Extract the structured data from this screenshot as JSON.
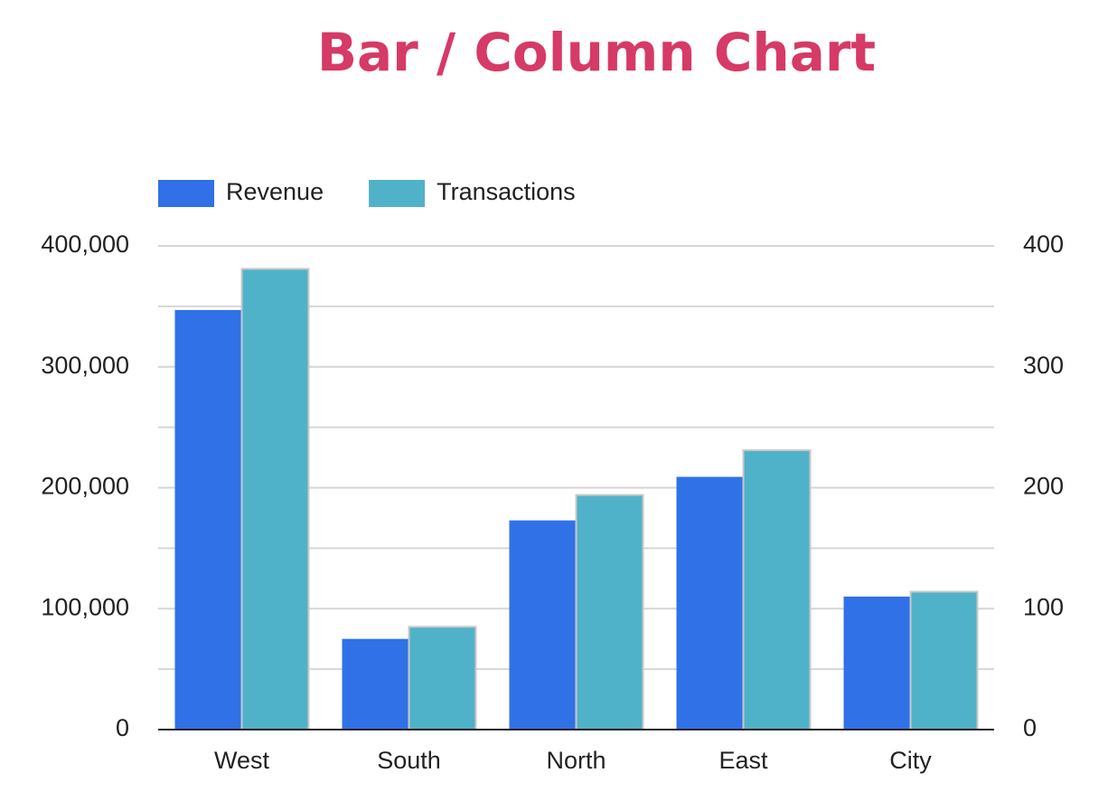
{
  "chart_data": {
    "type": "bar",
    "title": "Bar / Column Chart",
    "categories": [
      "West",
      "South",
      "North",
      "East",
      "City"
    ],
    "series": [
      {
        "name": "Revenue",
        "color": "#3071e8",
        "values": [
          347000,
          75000,
          173000,
          209000,
          110000
        ]
      },
      {
        "name": "Transactions",
        "color": "#50b2c8",
        "axis": "y2",
        "values": [
          381,
          85,
          194,
          231,
          114
        ]
      }
    ],
    "ylim": [
      0,
      400000
    ],
    "yticks": [
      0,
      {
        "value": 100000,
        "label": "100,000"
      },
      {
        "value": 200000,
        "label": "200,000"
      },
      {
        "value": 300000,
        "label": "300,000"
      },
      {
        "value": 400000,
        "label": "400,000"
      }
    ],
    "y_minor_gridlines": [
      50000,
      150000,
      250000,
      350000
    ],
    "y2lim": [
      0,
      400
    ],
    "y2ticks": [
      0,
      100,
      200,
      300,
      400
    ],
    "grid": true,
    "legend": "top-left"
  }
}
